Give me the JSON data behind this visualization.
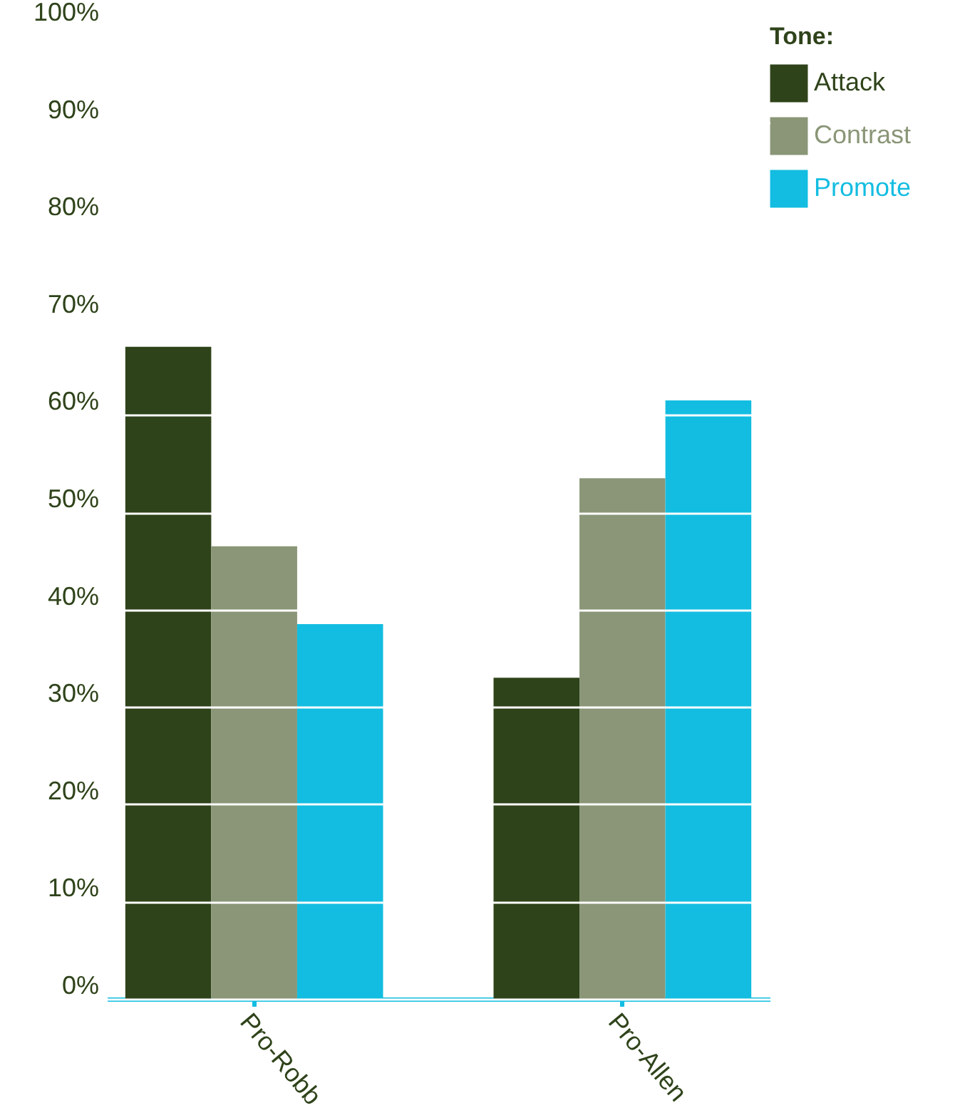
{
  "chart_data": {
    "type": "bar",
    "categories": [
      "Pro-Robb",
      "Pro-Allen"
    ],
    "legend_title": "Tone:",
    "series": [
      {
        "name": "Attack",
        "color": "#2f431a",
        "values": [
          67,
          33
        ]
      },
      {
        "name": "Contrast",
        "color": "#8a9677",
        "values": [
          46.5,
          53.5
        ]
      },
      {
        "name": "Promote",
        "color": "#13bde1",
        "values": [
          38.5,
          61.5
        ]
      }
    ],
    "ylim": [
      0,
      100
    ],
    "yticks": [
      {
        "value": 0,
        "label": "0%"
      },
      {
        "value": 10,
        "label": "10%"
      },
      {
        "value": 20,
        "label": "20%"
      },
      {
        "value": 30,
        "label": "30%"
      },
      {
        "value": 40,
        "label": "40%"
      },
      {
        "value": 50,
        "label": "50%"
      },
      {
        "value": 60,
        "label": "60%"
      },
      {
        "value": 70,
        "label": "70%"
      },
      {
        "value": 80,
        "label": "80%"
      },
      {
        "value": 90,
        "label": "90%"
      },
      {
        "value": 100,
        "label": "100%"
      }
    ],
    "grid": "y",
    "legend": "top right"
  }
}
